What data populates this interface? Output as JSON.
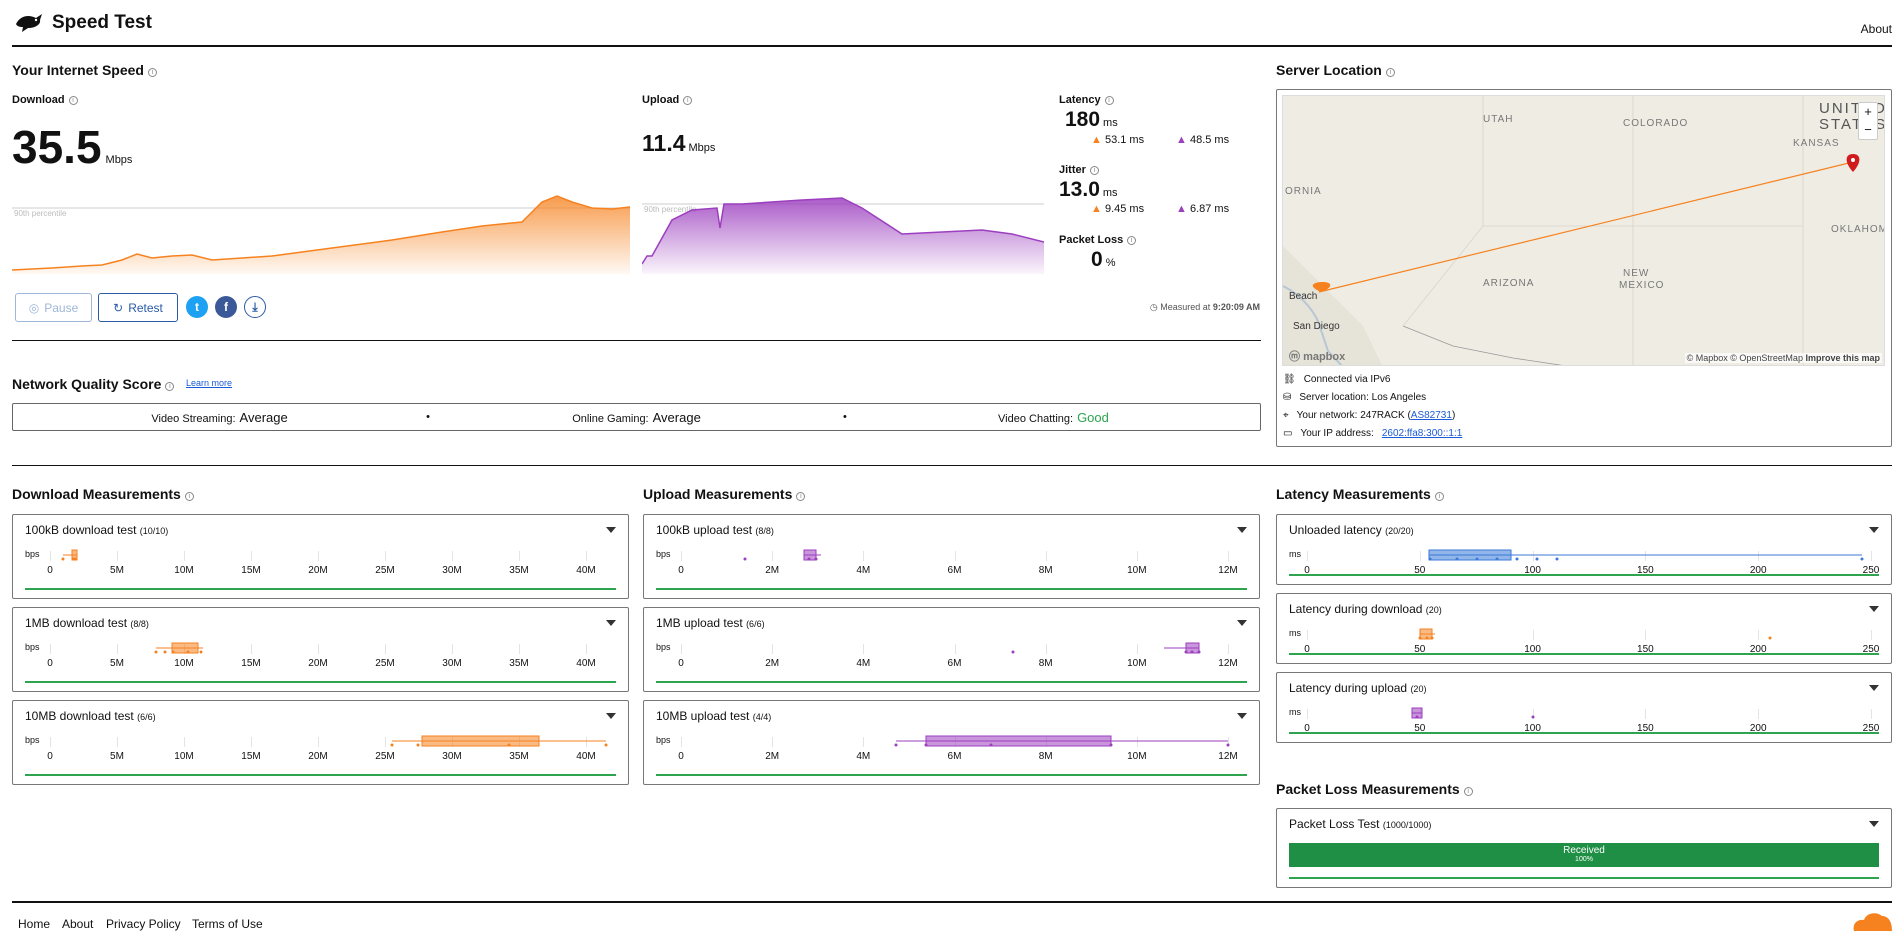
{
  "header": {
    "title": "Speed Test",
    "about": "About"
  },
  "speed": {
    "section_title": "Your Internet Speed",
    "download": {
      "label": "Download",
      "value": "35.5",
      "unit": "Mbps",
      "percentile_label": "90th percentile"
    },
    "upload": {
      "label": "Upload",
      "value": "11.4",
      "unit": "Mbps",
      "percentile_label": "90th percentile"
    },
    "latency": {
      "label": "Latency",
      "value": "180",
      "unit": "ms",
      "down": "53.1 ms",
      "up": "48.5 ms"
    },
    "jitter": {
      "label": "Jitter",
      "value": "13.0",
      "unit": "ms",
      "down": "9.45 ms",
      "up": "6.87 ms"
    },
    "packet_loss": {
      "label": "Packet Loss",
      "value": "0",
      "unit": "%"
    },
    "buttons": {
      "pause": "Pause",
      "retest": "Retest"
    },
    "measured_at": "Measured at",
    "measured_time": "9:20:09 AM"
  },
  "server": {
    "section_title": "Server Location",
    "map_labels": {
      "utah": "UTAH",
      "colorado": "COLORADO",
      "united": "UNITED",
      "states": "STATES",
      "kansas": "KANSAS",
      "oklahoma": "OKLAHOM",
      "california": "ORNIA",
      "arizona": "ARIZONA",
      "new": "NEW",
      "mexico": "MEXICO",
      "beach": "Beach",
      "san_diego": "San Diego"
    },
    "mapbox": "mapbox",
    "attribution": "© Mapbox © OpenStreetMap",
    "improve": "Improve this map",
    "zoom_in": "+",
    "zoom_out": "−",
    "connected": "Connected via IPv6",
    "location": "Server location: Los Angeles",
    "network_label": "Your network: 247RACK (",
    "network_as": "AS82731",
    "network_close": ")",
    "ip_label": "Your IP address:",
    "ip": "2602:ffa8:300::1:1"
  },
  "quality": {
    "title": "Network Quality Score",
    "learn_more": "Learn more",
    "items": [
      {
        "label": "Video Streaming:",
        "value": "Average"
      },
      {
        "label": "Online Gaming:",
        "value": "Average"
      },
      {
        "label": "Video Chatting:",
        "value": "Good"
      }
    ],
    "good_color": "#2da44e"
  },
  "download_measurements": {
    "title": "Download Measurements",
    "unit_label": "bps",
    "ticks": [
      "0",
      "5M",
      "10M",
      "15M",
      "20M",
      "25M",
      "30M",
      "35M",
      "40M"
    ],
    "cards": [
      {
        "title": "100kB download test",
        "count": "(10/10)"
      },
      {
        "title": "1MB download test",
        "count": "(8/8)"
      },
      {
        "title": "10MB download test",
        "count": "(6/6)"
      }
    ]
  },
  "upload_measurements": {
    "title": "Upload Measurements",
    "unit_label": "bps",
    "ticks": [
      "0",
      "2M",
      "4M",
      "6M",
      "8M",
      "10M",
      "12M"
    ],
    "cards": [
      {
        "title": "100kB upload test",
        "count": "(8/8)"
      },
      {
        "title": "1MB upload test",
        "count": "(6/6)"
      },
      {
        "title": "10MB upload test",
        "count": "(4/4)"
      }
    ]
  },
  "latency_measurements": {
    "title": "Latency Measurements",
    "unit_label": "ms",
    "ticks": [
      "0",
      "50",
      "100",
      "150",
      "200",
      "250"
    ],
    "cards": [
      {
        "title": "Unloaded latency",
        "count": "(20/20)"
      },
      {
        "title": "Latency during download",
        "count": "(20)"
      },
      {
        "title": "Latency during upload",
        "count": "(20)"
      }
    ]
  },
  "packet_loss_measurements": {
    "title": "Packet Loss Measurements",
    "card_title": "Packet Loss Test",
    "count": "(1000/1000)",
    "bar_label": "Received",
    "bar_percent": "100%",
    "received_fraction": 1.0
  },
  "footer": {
    "links": [
      "Home",
      "About",
      "Privacy Policy",
      "Terms of Use"
    ]
  },
  "colors": {
    "download": "#f6821f",
    "upload": "#9c3fbf",
    "latency": "#3b7ad9",
    "accent": "#2b5ba6"
  }
}
